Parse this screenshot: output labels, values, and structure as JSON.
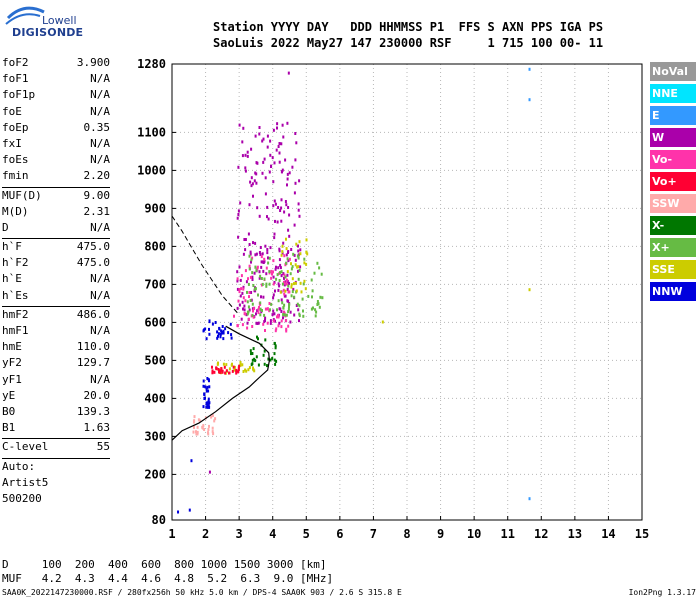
{
  "logo": {
    "line1": "Lowell",
    "line2": "DIGISONDE"
  },
  "header": {
    "row1": "Station YYYY DAY   DDD HHMMSS P1  FFS S AXN PPS IGA PS",
    "row2": "SaoLuis 2022 May27 147 230000 RSF     1 715 100 00- 11"
  },
  "params": [
    {
      "name": "foF2",
      "value": "3.900"
    },
    {
      "name": "foF1",
      "value": "N/A"
    },
    {
      "name": "foF1p",
      "value": "N/A"
    },
    {
      "name": "foE",
      "value": "N/A"
    },
    {
      "name": "foEp",
      "value": "0.35"
    },
    {
      "name": "fxI",
      "value": "N/A"
    },
    {
      "name": "foEs",
      "value": "N/A"
    },
    {
      "name": "fmin",
      "value": "2.20"
    },
    {
      "sep": true
    },
    {
      "name": "MUF(D)",
      "value": "9.00"
    },
    {
      "name": "M(D)",
      "value": "2.31"
    },
    {
      "name": "D",
      "value": "N/A"
    },
    {
      "sep": true
    },
    {
      "name": "h`F",
      "value": "475.0"
    },
    {
      "name": "h`F2",
      "value": "475.0"
    },
    {
      "name": "h`E",
      "value": "N/A"
    },
    {
      "name": "h`Es",
      "value": "N/A"
    },
    {
      "sep": true
    },
    {
      "name": "hmF2",
      "value": "486.0"
    },
    {
      "name": "hmF1",
      "value": "N/A"
    },
    {
      "name": "hmE",
      "value": "110.0"
    },
    {
      "name": "yF2",
      "value": "129.7"
    },
    {
      "name": "yF1",
      "value": "N/A"
    },
    {
      "name": "yE",
      "value": "20.0"
    },
    {
      "name": "B0",
      "value": "139.3"
    },
    {
      "name": "B1",
      "value": "1.63"
    },
    {
      "sep": true
    },
    {
      "name": "C-level",
      "value": "55"
    },
    {
      "sep": true
    }
  ],
  "params_footer": [
    "Auto:",
    "Artist5",
    "500200"
  ],
  "legend": [
    {
      "label": "NoVal",
      "color": "#999999"
    },
    {
      "label": "NNE",
      "color": "#00e5ff"
    },
    {
      "label": "E",
      "color": "#3399ff"
    },
    {
      "label": "W",
      "color": "#aa00aa"
    },
    {
      "label": "Vo-",
      "color": "#ff33aa"
    },
    {
      "label": "Vo+",
      "color": "#ff0033"
    },
    {
      "label": "SSW",
      "color": "#ffaaaa"
    },
    {
      "label": "X-",
      "color": "#007700"
    },
    {
      "label": "X+",
      "color": "#66bb44"
    },
    {
      "label": "SSE",
      "color": "#cccc00"
    },
    {
      "label": "NNW",
      "color": "#0000dd"
    }
  ],
  "muf_table": {
    "row1": "D     100  200  400  600  800 1000 1500 3000 [km]",
    "row2": "MUF   4.2  4.3  4.4  4.6  4.8  5.2  6.3  9.0 [MHz]"
  },
  "footer": "SAA0K_2022147230000.RSF / 280fx256h 50 kHz 5.0 km / DPS-4 SAA0K 903 / 2.6 S 315.8 E",
  "version": "Ion2Png 1.3.17",
  "chart_data": {
    "type": "scatter",
    "title": "",
    "xlabel": "",
    "ylabel": "",
    "xlim": [
      1,
      15
    ],
    "x_ticks": [
      1,
      2,
      3,
      4,
      5,
      6,
      7,
      8,
      9,
      10,
      11,
      12,
      13,
      14,
      15
    ],
    "ylim": [
      80,
      1280
    ],
    "y_ticks": [
      80,
      200,
      300,
      400,
      500,
      600,
      700,
      800,
      900,
      1000,
      1100,
      1280
    ],
    "grid": true,
    "legend_position": "right",
    "profile_curve": [
      [
        1.0,
        290
      ],
      [
        1.3,
        315
      ],
      [
        1.8,
        335
      ],
      [
        2.3,
        365
      ],
      [
        2.8,
        400
      ],
      [
        3.3,
        430
      ],
      [
        3.6,
        455
      ],
      [
        3.85,
        475
      ],
      [
        3.9,
        500
      ],
      [
        3.88,
        520
      ],
      [
        3.6,
        545
      ],
      [
        3.0,
        570
      ],
      [
        2.6,
        590
      ]
    ],
    "dashed_curve": [
      [
        1.0,
        880
      ],
      [
        1.3,
        840
      ],
      [
        1.6,
        795
      ],
      [
        1.9,
        750
      ],
      [
        2.2,
        710
      ],
      [
        2.5,
        670
      ],
      [
        2.8,
        640
      ],
      [
        3.0,
        620
      ]
    ],
    "trace_clusters": [
      {
        "series": "W",
        "x_range": [
          2.9,
          4.8
        ],
        "y_range": [
          600,
          1130
        ]
      },
      {
        "series": "Vo-",
        "x_range": [
          2.8,
          4.5
        ],
        "y_range": [
          580,
          780
        ]
      },
      {
        "series": "X+",
        "x_range": [
          3.2,
          5.5
        ],
        "y_range": [
          620,
          800
        ]
      },
      {
        "series": "SSE",
        "x_range": [
          4.2,
          5.0
        ],
        "y_range": [
          680,
          830
        ]
      },
      {
        "series": "NNW",
        "x_range": [
          1.9,
          2.8
        ],
        "y_range": [
          560,
          610
        ]
      },
      {
        "series": "SSE",
        "x_range": [
          2.3,
          3.5
        ],
        "y_range": [
          470,
          500
        ]
      },
      {
        "series": "Vo+",
        "x_range": [
          2.0,
          3.0
        ],
        "y_range": [
          470,
          490
        ]
      },
      {
        "series": "X-",
        "x_range": [
          3.3,
          4.1
        ],
        "y_range": [
          490,
          570
        ]
      },
      {
        "series": "NNW",
        "x_range": [
          1.9,
          2.1
        ],
        "y_range": [
          380,
          460
        ]
      },
      {
        "series": "SSW",
        "x_range": [
          1.6,
          2.3
        ],
        "y_range": [
          310,
          360
        ]
      }
    ],
    "isolated_points": [
      {
        "x": 11.62,
        "y": 1270,
        "series": "E"
      },
      {
        "x": 11.62,
        "y": 1190,
        "series": "E"
      },
      {
        "x": 11.62,
        "y": 690,
        "series": "SSE"
      },
      {
        "x": 11.62,
        "y": 140,
        "series": "E"
      },
      {
        "x": 7.25,
        "y": 605,
        "series": "SSE"
      },
      {
        "x": 2.1,
        "y": 210,
        "series": "W"
      },
      {
        "x": 1.5,
        "y": 110,
        "series": "NNW"
      },
      {
        "x": 1.15,
        "y": 105,
        "series": "NNW"
      },
      {
        "x": 1.55,
        "y": 240,
        "series": "NNW"
      },
      {
        "x": 4.45,
        "y": 1260,
        "series": "W"
      }
    ]
  }
}
